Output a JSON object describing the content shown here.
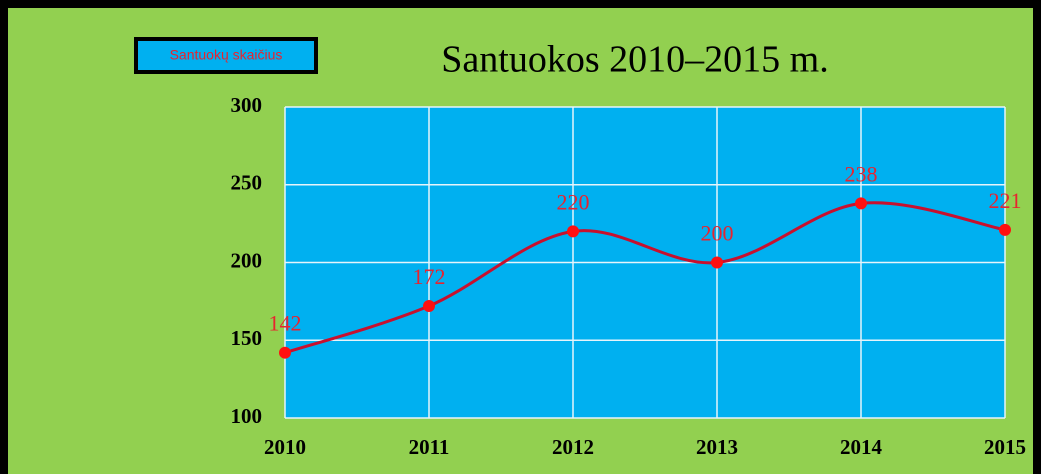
{
  "chart_data": {
    "type": "line",
    "title": "Santuokos 2010–2015 m.",
    "categories": [
      "2010",
      "2011",
      "2012",
      "2013",
      "2014",
      "2015"
    ],
    "series": [
      {
        "name": "Santuokų skaičius",
        "color": "#c8102e",
        "marker_color": "#ff1010",
        "values": [
          142,
          172,
          220,
          200,
          238,
          221
        ]
      }
    ],
    "ylim": [
      100,
      300
    ],
    "yticks": [
      100,
      150,
      200,
      250,
      300
    ],
    "grid": true,
    "smooth": true,
    "legend": "top-left",
    "background": "#92d050",
    "plot_background": "#00b0f0"
  }
}
